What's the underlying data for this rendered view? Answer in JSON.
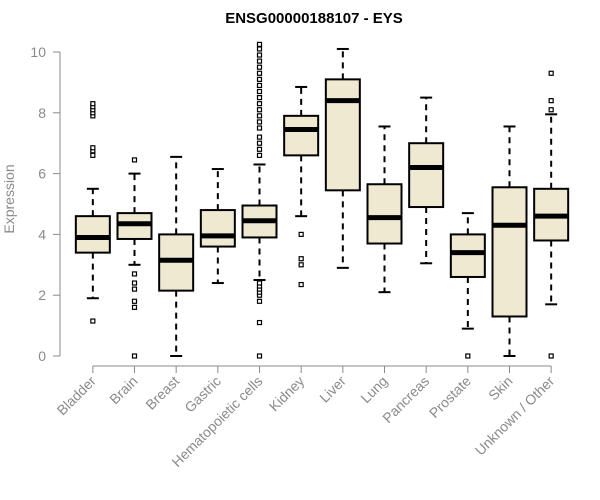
{
  "chart_data": {
    "type": "box",
    "title": "ENSG00000188107 - EYS",
    "xlabel": "",
    "ylabel": "Expression",
    "ylim": [
      0,
      10
    ],
    "yticks": [
      0,
      2,
      4,
      6,
      8,
      10
    ],
    "box_fill": "#efe9d2",
    "box_stroke": "#000000",
    "categories": [
      "Bladder",
      "Brain",
      "Breast",
      "Gastric",
      "Hematopoietic cells",
      "Kidney",
      "Liver",
      "Lung",
      "Pancreas",
      "Prostate",
      "Skin",
      "Unknown / Other"
    ],
    "boxes": [
      {
        "name": "Bladder",
        "whisker_low": 1.9,
        "q1": 3.4,
        "median": 3.9,
        "q3": 4.6,
        "whisker_high": 5.5,
        "outliers": [
          1.15,
          6.6,
          6.75,
          6.85,
          7.9,
          8.0,
          8.1,
          8.2,
          8.3
        ]
      },
      {
        "name": "Brain",
        "whisker_low": 3.0,
        "q1": 3.85,
        "median": 4.35,
        "q3": 4.7,
        "whisker_high": 6.0,
        "outliers": [
          0.0,
          1.6,
          1.8,
          2.2,
          2.4,
          2.7,
          6.45
        ]
      },
      {
        "name": "Breast",
        "whisker_low": 0.0,
        "q1": 2.15,
        "median": 3.15,
        "q3": 4.0,
        "whisker_high": 6.55,
        "outliers": []
      },
      {
        "name": "Gastric",
        "whisker_low": 2.4,
        "q1": 3.6,
        "median": 3.95,
        "q3": 4.8,
        "whisker_high": 6.15,
        "outliers": []
      },
      {
        "name": "Hematopoietic cells",
        "whisker_low": 2.5,
        "q1": 3.9,
        "median": 4.45,
        "q3": 4.95,
        "whisker_high": 6.3,
        "outliers": [
          0.0,
          1.1,
          1.8,
          2.0,
          2.1,
          2.2,
          2.3,
          2.4,
          6.6,
          6.8,
          7.0,
          7.2,
          7.5,
          7.7,
          7.9,
          8.1,
          8.3,
          8.5,
          8.7,
          8.9,
          9.1,
          9.3,
          9.5,
          9.7,
          9.9,
          10.1,
          10.25
        ]
      },
      {
        "name": "Kidney",
        "whisker_low": 4.6,
        "q1": 6.6,
        "median": 7.45,
        "q3": 7.9,
        "whisker_high": 8.85,
        "outliers": [
          2.35,
          3.0,
          3.2,
          4.0
        ]
      },
      {
        "name": "Liver",
        "whisker_low": 2.9,
        "q1": 5.45,
        "median": 8.4,
        "q3": 9.1,
        "whisker_high": 10.1,
        "outliers": []
      },
      {
        "name": "Lung",
        "whisker_low": 2.1,
        "q1": 3.7,
        "median": 4.55,
        "q3": 5.65,
        "whisker_high": 7.55,
        "outliers": []
      },
      {
        "name": "Pancreas",
        "whisker_low": 3.05,
        "q1": 4.9,
        "median": 6.2,
        "q3": 7.0,
        "whisker_high": 8.5,
        "outliers": []
      },
      {
        "name": "Prostate",
        "whisker_low": 0.9,
        "q1": 2.6,
        "median": 3.4,
        "q3": 4.0,
        "whisker_high": 4.7,
        "outliers": [
          0.0
        ]
      },
      {
        "name": "Skin",
        "whisker_low": 0.0,
        "q1": 1.3,
        "median": 4.3,
        "q3": 5.55,
        "whisker_high": 7.55,
        "outliers": []
      },
      {
        "name": "Unknown / Other",
        "whisker_low": 1.7,
        "q1": 3.8,
        "median": 4.6,
        "q3": 5.5,
        "whisker_high": 7.95,
        "outliers": [
          0.0,
          8.1,
          8.4,
          9.3
        ]
      }
    ]
  }
}
